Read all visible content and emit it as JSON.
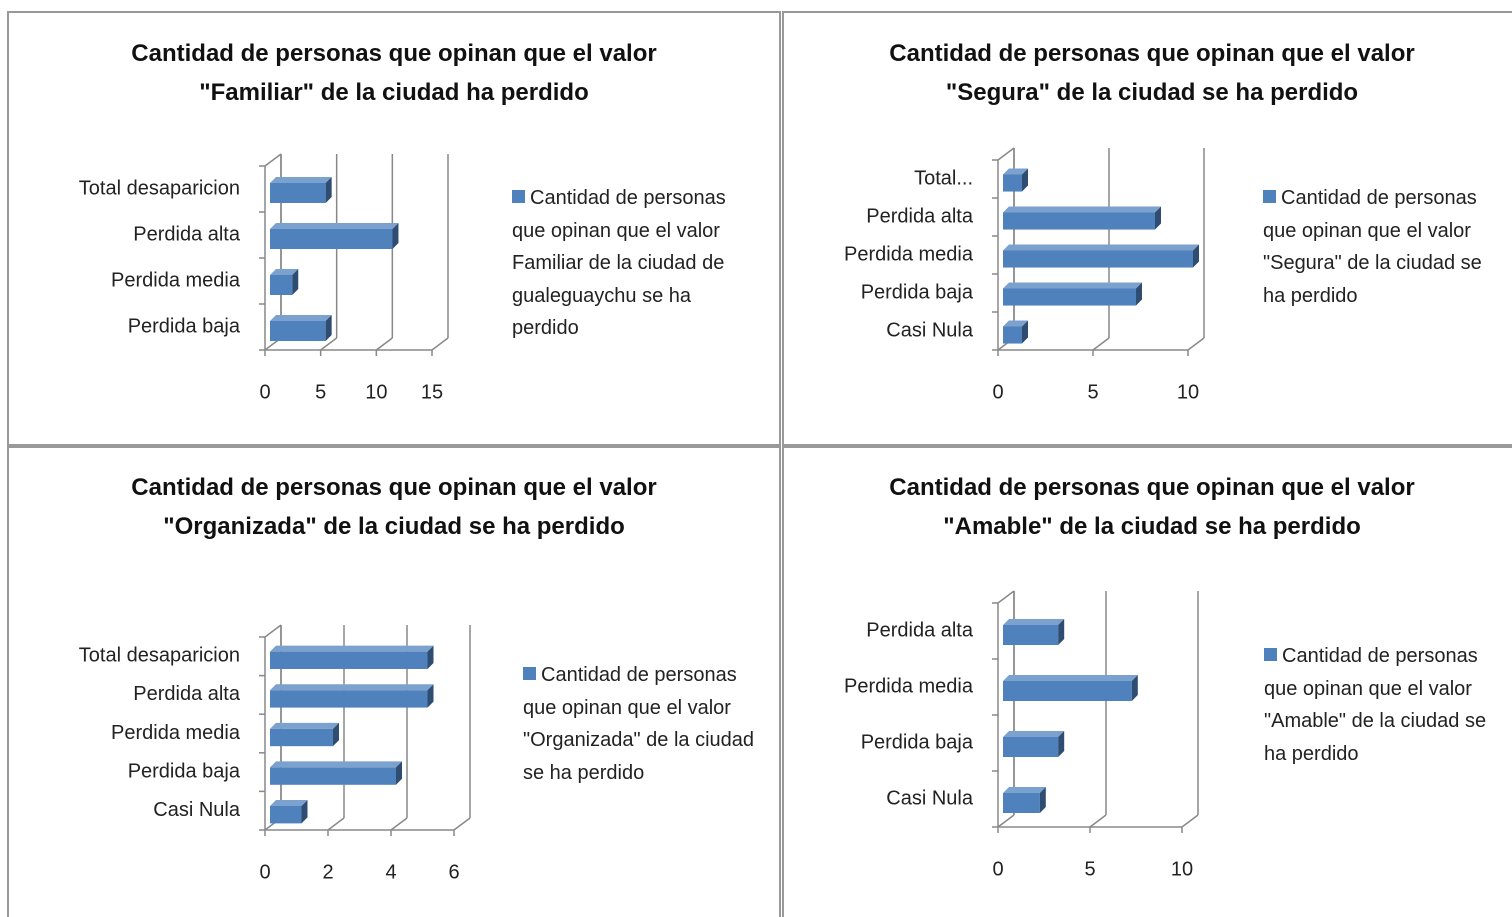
{
  "chart_data": [
    {
      "type": "bar",
      "title": "Cantidad de personas que opinan que el valor \"Familiar\" de la ciudad ha perdido",
      "categories": [
        "Total desaparicion",
        "Perdida alta",
        "Perdida media",
        "Perdida baja"
      ],
      "series": [
        {
          "name": "Cantidad de personas que opinan que el valor Familiar de la ciudad de gualeguaychu se ha perdido",
          "color": "#4f81bd",
          "values": [
            5,
            11,
            2,
            5
          ]
        }
      ],
      "xlim": [
        0,
        15
      ],
      "xticks": [
        0,
        5,
        10,
        15
      ],
      "grid": true,
      "legend": "right"
    },
    {
      "type": "bar",
      "title": "Cantidad de personas que opinan que el valor \"Segura\" de la ciudad se ha perdido",
      "categories": [
        "Total...",
        "Perdida alta",
        "Perdida media",
        "Perdida baja",
        "Casi Nula"
      ],
      "series": [
        {
          "name": "Cantidad de personas que opinan que el valor \"Segura\" de la ciudad se ha perdido",
          "color": "#4f81bd",
          "values": [
            1,
            8,
            10,
            7,
            1
          ]
        }
      ],
      "xlim": [
        0,
        10
      ],
      "xticks": [
        0,
        5,
        10
      ],
      "grid": true,
      "legend": "right"
    },
    {
      "type": "bar",
      "title": "Cantidad de personas que opinan que el valor \"Organizada\" de la ciudad se ha perdido",
      "categories": [
        "Total desaparicion",
        "Perdida alta",
        "Perdida media",
        "Perdida baja",
        "Casi Nula"
      ],
      "series": [
        {
          "name": "Cantidad de personas que opinan que el valor \"Organizada\" de la ciudad se ha perdido",
          "color": "#4f81bd",
          "values": [
            5,
            5,
            2,
            4,
            1
          ]
        }
      ],
      "xlim": [
        0,
        6
      ],
      "xticks": [
        0,
        2,
        4,
        6
      ],
      "grid": true,
      "legend": "right"
    },
    {
      "type": "bar",
      "title": "Cantidad de personas que opinan que el valor \"Amable\" de la ciudad se ha perdido",
      "categories": [
        "Perdida alta",
        "Perdida media",
        "Perdida baja",
        "Casi Nula"
      ],
      "series": [
        {
          "name": "Cantidad de personas que opinan que el valor \"Amable\" de la ciudad se ha perdido",
          "color": "#4f81bd",
          "values": [
            3,
            7,
            3,
            2
          ]
        }
      ],
      "xlim": [
        0,
        10
      ],
      "xticks": [
        0,
        5,
        10
      ],
      "grid": true,
      "legend": "right"
    }
  ]
}
